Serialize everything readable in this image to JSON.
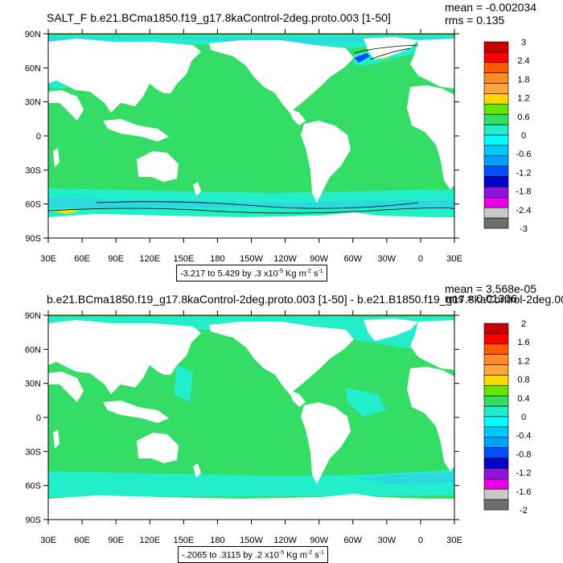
{
  "colors": {
    "ocean_fill": "#33dd66",
    "land_fill": "#ffffff",
    "neg_fill": "#22eecc",
    "neg2_fill": "#2ed8e0",
    "pos_fill": "#ffdd00",
    "contour": "#000000"
  },
  "panels": [
    {
      "title": "SALT_F b.e21.BCma1850.f19_g17.8kaControl-2deg.proto.003 [1-50]",
      "mean": "mean = -0.002034",
      "rms": "rms = 0.135",
      "lat_labels": [
        "90N",
        "60N",
        "30N",
        "0",
        "30S",
        "60S",
        "90S"
      ],
      "lon_labels": [
        "30E",
        "60E",
        "90E",
        "120E",
        "150E",
        "180",
        "150W",
        "120W",
        "90W",
        "60W",
        "30W",
        "0",
        "30E"
      ],
      "colorbar": {
        "labels": [
          "3",
          "2.4",
          "1.8",
          "1.2",
          "0.6",
          "0",
          "-0.6",
          "-1.2",
          "-1.8",
          "-2.4",
          "-3"
        ],
        "colors": [
          "#c80000",
          "#ff0000",
          "#ff5a00",
          "#ff8c1e",
          "#ffa53c",
          "#ffd700",
          "#64e600",
          "#33dd66",
          "#22eecc",
          "#00ffff",
          "#00c8ff",
          "#00a0ff",
          "#0050ff",
          "#0000c8",
          "#8c14dc",
          "#e600e6",
          "#c8c8c8",
          "#6e6e6e"
        ]
      },
      "range": {
        "text": "-3.217 to 5.429 by .3 x10",
        "exp": "-5",
        "units": " Kg m",
        "u_exp": "-2",
        "s": " s",
        "s_exp": "-1"
      }
    },
    {
      "title": "b.e21.BCma1850.f19_g17.8kaControl-2deg.proto.003 [1-50] - b.e21.B1850.f19_g17.8kaControl-2deg.00",
      "mean": "mean = 3.568e-05",
      "rms": "rms = 0.01306",
      "lat_labels": [
        "90N",
        "60N",
        "30N",
        "0",
        "30S",
        "60S",
        "90S"
      ],
      "lon_labels": [
        "30E",
        "60E",
        "90E",
        "120E",
        "150E",
        "180",
        "150W",
        "120W",
        "90W",
        "60W",
        "30W",
        "0",
        "30E"
      ],
      "colorbar": {
        "labels": [
          "2",
          "1.6",
          "1.2",
          "0.8",
          "0.4",
          "0",
          "-0.4",
          "-0.8",
          "-1.2",
          "-1.6",
          "-2"
        ],
        "colors": [
          "#c80000",
          "#ff0000",
          "#ff5a00",
          "#ff8c1e",
          "#ffa53c",
          "#ffd700",
          "#64e600",
          "#33dd66",
          "#22eecc",
          "#00ffff",
          "#00c8ff",
          "#00a0ff",
          "#0050ff",
          "#0000c8",
          "#8c14dc",
          "#e600e6",
          "#c8c8c8",
          "#6e6e6e"
        ]
      },
      "range": {
        "text": "-.2065 to .3115 by .2 x10",
        "exp": "-5",
        "units": " Kg m",
        "u_exp": "-2",
        "s": " s",
        "s_exp": "-1"
      }
    }
  ]
}
